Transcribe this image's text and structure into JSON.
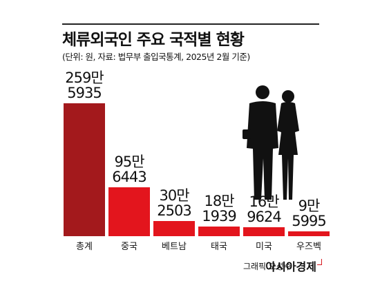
{
  "chart_data": {
    "type": "bar",
    "title": "체류외국인 주요 국적별 현황",
    "subtitle": "(단위: 원, 자료: 법무부 출입국통계, 2025년 2월 기준)",
    "categories": [
      "총계",
      "중국",
      "베트남",
      "태국",
      "미국",
      "우즈벡"
    ],
    "values": [
      2595935,
      956443,
      302503,
      181939,
      169624,
      95995
    ],
    "value_labels": [
      "259만\n5935",
      "95만\n6443",
      "30만\n2503",
      "18만\n1939",
      "16만\n9624",
      "9만\n5995"
    ],
    "colors": [
      "#a3191c",
      "#e3151d",
      "#e3151d",
      "#e3151d",
      "#e3151d",
      "#e3151d"
    ],
    "credit": "그래픽 오성수",
    "source": "아시아경제"
  }
}
